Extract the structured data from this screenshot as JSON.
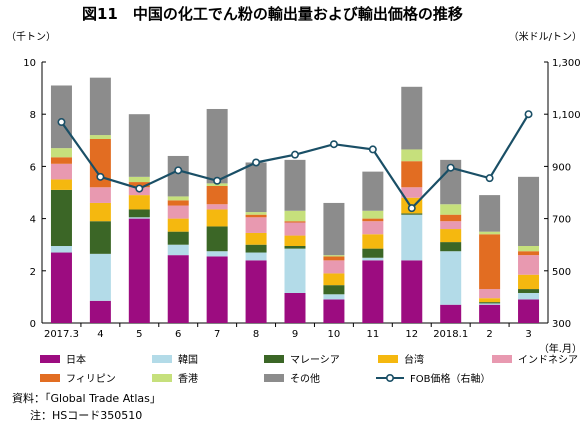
{
  "chart_data": {
    "type": "bar",
    "title": "図11　中国の化工でん粉の輸出量および輸出価格の推移",
    "ylabel_left": "（千トン）",
    "ylabel_right": "（米ドル/トン）",
    "xlabel": "（年.月）",
    "categories": [
      "2017.3",
      "4",
      "5",
      "6",
      "7",
      "8",
      "9",
      "10",
      "11",
      "12",
      "2018.1",
      "2",
      "3"
    ],
    "ylim_left": [
      0,
      10
    ],
    "yticks_left": [
      "0",
      "2",
      "4",
      "6",
      "8",
      "10"
    ],
    "ylim_right": [
      300,
      1300
    ],
    "yticks_right": [
      "300",
      "500",
      "700",
      "900",
      "1,100",
      "1,300"
    ],
    "stack_order": [
      "日本",
      "韓国",
      "マレーシア",
      "台湾",
      "インドネシア",
      "フィリピン",
      "香港",
      "その他"
    ],
    "series": [
      {
        "name": "日本",
        "color": "#9c0c80",
        "values": [
          2.7,
          0.85,
          4.0,
          2.6,
          2.55,
          2.4,
          1.15,
          0.9,
          2.4,
          2.4,
          0.7,
          0.7,
          0.9
        ]
      },
      {
        "name": "韓国",
        "color": "#b3dbe8",
        "values": [
          0.25,
          1.8,
          0.05,
          0.4,
          0.2,
          0.3,
          1.7,
          0.2,
          0.1,
          1.75,
          2.05,
          0.05,
          0.25
        ]
      },
      {
        "name": "マレーシア",
        "color": "#3b6626",
        "values": [
          2.15,
          1.25,
          0.3,
          0.5,
          0.95,
          0.3,
          0.1,
          0.35,
          0.35,
          0.05,
          0.35,
          0.05,
          0.15
        ]
      },
      {
        "name": "台湾",
        "color": "#f5b80f",
        "values": [
          0.4,
          0.7,
          0.55,
          0.5,
          0.65,
          0.45,
          0.4,
          0.45,
          0.55,
          0.6,
          0.5,
          0.15,
          0.55
        ]
      },
      {
        "name": "インドネシア",
        "color": "#e899b0",
        "values": [
          0.6,
          0.6,
          0.3,
          0.5,
          0.2,
          0.6,
          0.5,
          0.5,
          0.5,
          0.4,
          0.3,
          0.35,
          0.75
        ]
      },
      {
        "name": "フィリピン",
        "color": "#e26d22",
        "values": [
          0.25,
          1.85,
          0.2,
          0.2,
          0.7,
          0.1,
          0.05,
          0.15,
          0.1,
          1.0,
          0.25,
          2.1,
          0.15
        ]
      },
      {
        "name": "香港",
        "color": "#c6e07c",
        "values": [
          0.35,
          0.15,
          0.2,
          0.15,
          0.1,
          0.1,
          0.4,
          0.05,
          0.3,
          0.45,
          0.4,
          0.1,
          0.2
        ]
      },
      {
        "name": "その他",
        "color": "#8c8c8c",
        "values": [
          2.4,
          2.2,
          2.4,
          1.55,
          2.85,
          1.9,
          1.95,
          2.0,
          1.5,
          2.4,
          1.7,
          1.4,
          2.65
        ]
      }
    ],
    "line": {
      "name": "FOB価格（右軸）",
      "color": "#1a4f66",
      "axis": "right",
      "values": [
        1070,
        860,
        815,
        885,
        845,
        915,
        945,
        985,
        965,
        740,
        895,
        855,
        1100
      ]
    },
    "legend": [
      "日本",
      "韓国",
      "マレーシア",
      "台湾",
      "インドネシア",
      "フィリピン",
      "香港",
      "その他",
      "FOB価格（右軸）"
    ],
    "legend_position": "bottom",
    "grid": false
  },
  "notes": {
    "source": "資料：「Global Trade Atlas」",
    "note": "注：HSコード350510"
  }
}
